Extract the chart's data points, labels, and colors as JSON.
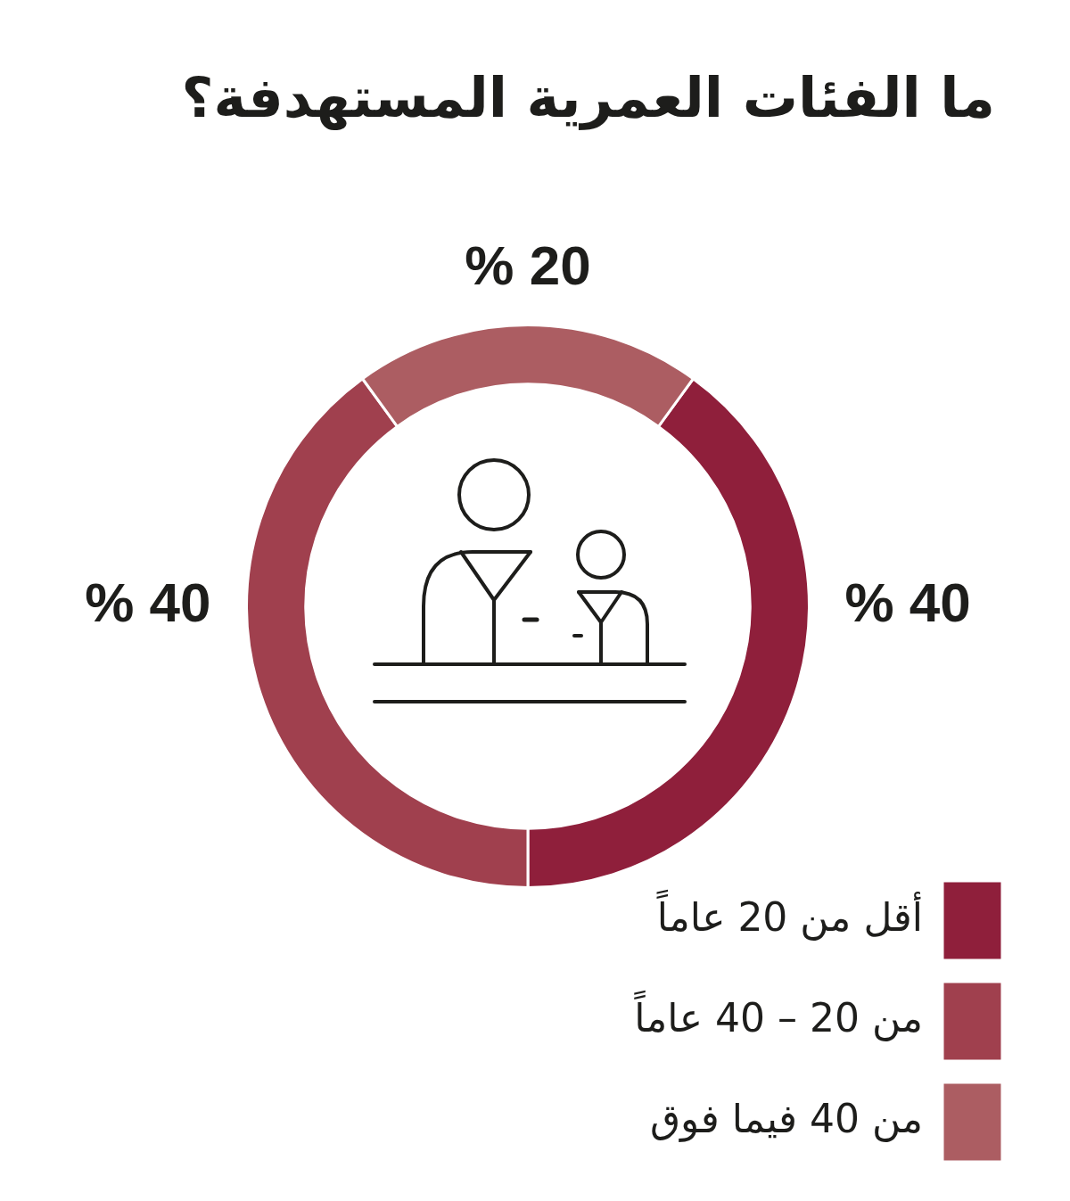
{
  "chart_data": {
    "type": "donut",
    "title": "ما الفئات العمرية المستهدفة؟",
    "categories": [
      "أقل من 20 عاماً",
      "من 20 – 40 عاماً",
      "من 40 فيما فوق"
    ],
    "values": [
      40,
      40,
      20
    ],
    "colors": [
      "#8f1f3b",
      "#a0404e",
      "#ac5d62"
    ],
    "value_labels": [
      "% 40",
      "% 40",
      "% 20"
    ],
    "legend": "bottom right"
  }
}
